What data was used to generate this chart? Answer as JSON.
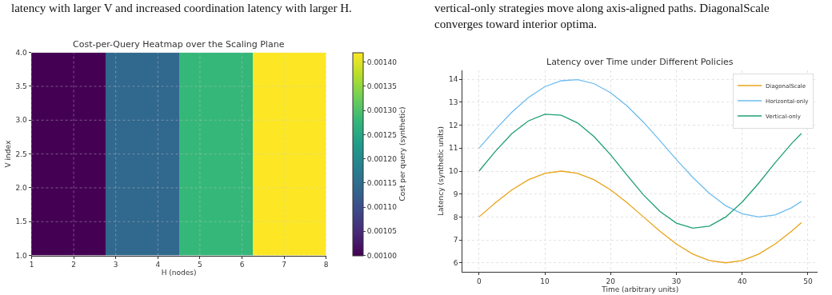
{
  "chart_data": [
    {
      "type": "heatmap",
      "title": "Cost-per-Query Heatmap over the Scaling Plane",
      "xlabel": "H (nodes)",
      "ylabel": "V index",
      "clabel": "Cost per query (synthetic)",
      "annotations": [
        "latency with larger V and increased coordination latency with larger H."
      ],
      "cells": [
        [
          0.001,
          0.00114,
          0.00128,
          0.00142
        ]
      ],
      "xlim": [
        1,
        8
      ],
      "ylim": [
        1,
        4
      ],
      "xticks": [
        1,
        2,
        3,
        4,
        5,
        6,
        7,
        8
      ],
      "yticks": [
        {
          "value": 1,
          "label": "1.0"
        },
        {
          "value": 1.5,
          "label": "1.5"
        },
        {
          "value": 2,
          "label": "2.0"
        },
        {
          "value": 2.5,
          "label": "2.5"
        },
        {
          "value": 3,
          "label": "3.0"
        },
        {
          "value": 3.5,
          "label": "3.5"
        },
        {
          "value": 4,
          "label": "4.0"
        }
      ],
      "clim": [
        0.001,
        0.00142
      ],
      "cticks": [
        {
          "value": 0.001,
          "label": "0.00100"
        },
        {
          "value": 0.00105,
          "label": "0.00105"
        },
        {
          "value": 0.0011,
          "label": "0.00110"
        },
        {
          "value": 0.00115,
          "label": "0.00115"
        },
        {
          "value": 0.0012,
          "label": "0.00120"
        },
        {
          "value": 0.00125,
          "label": "0.00125"
        },
        {
          "value": 0.0013,
          "label": "0.00130"
        },
        {
          "value": 0.00135,
          "label": "0.00135"
        },
        {
          "value": 0.0014,
          "label": "0.00140"
        }
      ],
      "grid": true
    },
    {
      "type": "line",
      "title": "Latency over Time under Different Policies",
      "xlabel": "Time (arbitrary units)",
      "ylabel": "Latency (synthetic units)",
      "annotations": [
        "vertical-only strategies move along axis-aligned paths. DiagonalScale\nconverges toward interior optima."
      ],
      "x": [
        0,
        2.5,
        5,
        7.5,
        10,
        12.5,
        15,
        17.5,
        20,
        22.5,
        25,
        27.5,
        30,
        32.5,
        35,
        37.5,
        40,
        42.5,
        45,
        47.5,
        49
      ],
      "series": [
        {
          "name": "DiagonalScale",
          "color": "#e8a317",
          "values": [
            8,
            8.62,
            9.18,
            9.62,
            9.9,
            10,
            9.9,
            9.62,
            9.18,
            8.62,
            8,
            7.38,
            6.82,
            6.38,
            6.1,
            6,
            6.1,
            6.38,
            6.82,
            7.38,
            7.75
          ]
        },
        {
          "name": "Horizontal-only",
          "color": "#6cbcef",
          "values": [
            11,
            11.82,
            12.57,
            13.21,
            13.68,
            13.94,
            13.99,
            13.81,
            13.42,
            12.84,
            12.13,
            11.33,
            10.5,
            9.72,
            9.03,
            8.49,
            8.14,
            8,
            8.09,
            8.4,
            8.68
          ]
        },
        {
          "name": "Vertical-only",
          "color": "#1f9e74",
          "values": [
            10,
            10.87,
            11.64,
            12.19,
            12.48,
            12.44,
            12.1,
            11.5,
            10.71,
            9.82,
            8.96,
            8.24,
            7.73,
            7.51,
            7.6,
            8,
            8.65,
            9.47,
            10.36,
            11.2,
            11.64
          ]
        }
      ],
      "xlim": [
        -2.5,
        51.5
      ],
      "ylim": [
        5.6,
        14.4
      ],
      "xticks": [
        0,
        10,
        20,
        30,
        40,
        50
      ],
      "yticks": [
        6,
        7,
        8,
        9,
        10,
        11,
        12,
        13,
        14
      ],
      "grid": true,
      "legend": "top right",
      "marker": "none",
      "line_style": "solid"
    }
  ]
}
